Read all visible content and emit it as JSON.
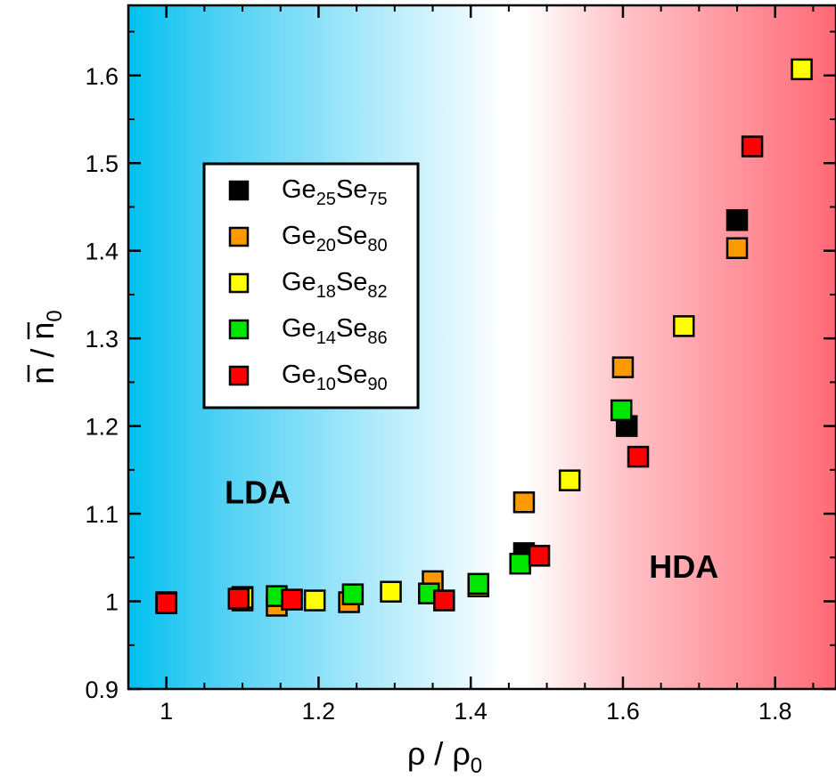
{
  "chart_data": {
    "type": "scatter",
    "xlabel": "ρ / ρ0",
    "ylabel": "n / n0",
    "xlim": [
      0.95,
      1.88
    ],
    "ylim": [
      0.9,
      1.68
    ],
    "x_ticks": [
      "1",
      "1.2",
      "1.4",
      "1.6",
      "1.8"
    ],
    "y_ticks": [
      "0.9",
      "1",
      "1.1",
      "1.2",
      "1.3",
      "1.4",
      "1.5",
      "1.6"
    ],
    "regions": [
      {
        "label": "LDA",
        "color": "#00c0f0",
        "x": 1.12,
        "y": 1.125
      },
      {
        "label": "HDA",
        "color": "#ff6a76",
        "x": 1.68,
        "y": 1.04
      }
    ],
    "series": [
      {
        "name": "Ge25Se75",
        "label_main": "Ge",
        "sub1": "25",
        "label_mid": "Se",
        "sub2": "75",
        "color": "#000000",
        "points": [
          [
            1.0,
            0.999
          ],
          [
            1.1,
            1.005
          ],
          [
            1.47,
            1.055
          ],
          [
            1.605,
            1.2
          ],
          [
            1.75,
            1.435
          ]
        ]
      },
      {
        "name": "Ge20Se80",
        "label_main": "Ge",
        "sub1": "20",
        "label_mid": "Se",
        "sub2": "80",
        "color": "#ff9900",
        "points": [
          [
            1.0,
            0.998
          ],
          [
            1.1,
            1.001
          ],
          [
            1.145,
            0.995
          ],
          [
            1.24,
            0.999
          ],
          [
            1.35,
            1.023
          ],
          [
            1.47,
            1.113
          ],
          [
            1.6,
            1.267
          ],
          [
            1.75,
            1.403
          ]
        ]
      },
      {
        "name": "Ge18Se82",
        "label_main": "Ge",
        "sub1": "18",
        "label_mid": "Se",
        "sub2": "82",
        "color": "#ffff00",
        "points": [
          [
            1.0,
            0.998
          ],
          [
            1.1,
            1.004
          ],
          [
            1.195,
            1.001
          ],
          [
            1.295,
            1.011
          ],
          [
            1.41,
            1.017
          ],
          [
            1.53,
            1.138
          ],
          [
            1.68,
            1.314
          ],
          [
            1.835,
            1.607
          ]
        ]
      },
      {
        "name": "Ge14Se86",
        "label_main": "Ge",
        "sub1": "14",
        "label_mid": "Se",
        "sub2": "86",
        "color": "#00e600",
        "points": [
          [
            1.0,
            0.998
          ],
          [
            1.145,
            1.006
          ],
          [
            1.245,
            1.008
          ],
          [
            1.345,
            1.009
          ],
          [
            1.41,
            1.02
          ],
          [
            1.465,
            1.043
          ],
          [
            1.598,
            1.218
          ]
        ]
      },
      {
        "name": "Ge10Se90",
        "label_main": "Ge",
        "sub1": "10",
        "label_mid": "Se",
        "sub2": "90",
        "color": "#ff0000",
        "points": [
          [
            1.0,
            0.998
          ],
          [
            1.095,
            1.003
          ],
          [
            1.165,
            1.002
          ],
          [
            1.365,
            1.001
          ],
          [
            1.49,
            1.052
          ],
          [
            1.62,
            1.165
          ],
          [
            1.77,
            1.519
          ]
        ]
      }
    ]
  }
}
